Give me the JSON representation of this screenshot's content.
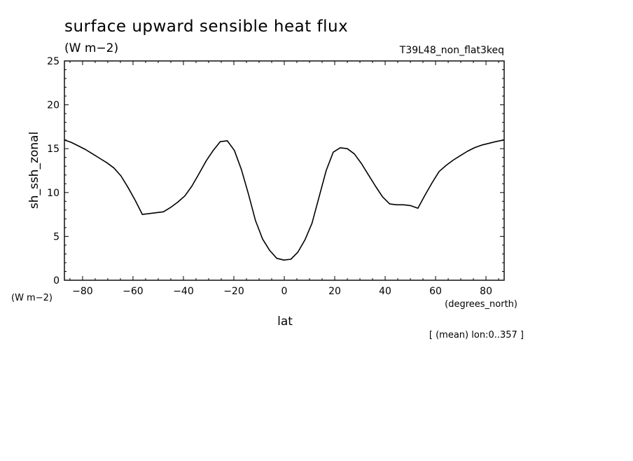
{
  "chart_data": {
    "type": "line",
    "title": "surface upward sensible heat flux",
    "units": "(W m−2)",
    "experiment": "T39L48_non_flat3keq",
    "ylabel": "sh_ssh_zonal",
    "yunits": "(W m−2)",
    "xlabel": "lat",
    "xunits": "(degrees_north)",
    "note": "[ (mean) lon:0..357 ]",
    "xlim": [
      -87.2,
      87.2
    ],
    "ylim": [
      0,
      25
    ],
    "x_ticks": [
      -80,
      -60,
      -40,
      -20,
      0,
      20,
      40,
      60,
      80
    ],
    "x_tick_labels": [
      "−80",
      "−60",
      "−40",
      "−20",
      "0",
      "20",
      "40",
      "60",
      "80"
    ],
    "y_ticks": [
      0,
      5,
      10,
      15,
      20,
      25
    ],
    "y_tick_labels": [
      "0",
      "5",
      "10",
      "15",
      "20",
      "25"
    ],
    "grid": false,
    "series": [
      {
        "x": [
          -87.2,
          -84.4,
          -81.6,
          -78.8,
          -76.0,
          -73.2,
          -70.4,
          -67.6,
          -64.8,
          -62.0,
          -59.1,
          -56.3,
          -53.5,
          -50.7,
          -47.9,
          -45.1,
          -42.3,
          -39.5,
          -36.7,
          -33.9,
          -31.0,
          -28.2,
          -25.4,
          -22.6,
          -19.8,
          -17.0,
          -14.2,
          -11.4,
          -8.6,
          -5.8,
          -3.0,
          -0.2,
          2.6,
          5.4,
          8.2,
          11.0,
          13.8,
          16.6,
          19.4,
          22.2,
          25.0,
          27.8,
          30.6,
          33.4,
          36.2,
          39.0,
          41.8,
          44.6,
          47.4,
          50.2,
          53.0,
          55.8,
          58.6,
          61.4,
          64.2,
          67.0,
          69.8,
          72.6,
          75.4,
          78.2,
          81.0,
          83.8,
          87.2
        ],
        "y": [
          16.0,
          15.7,
          15.3,
          14.9,
          14.4,
          13.9,
          13.4,
          12.8,
          11.9,
          10.6,
          9.1,
          7.5,
          7.6,
          7.7,
          7.8,
          8.3,
          8.9,
          9.6,
          10.7,
          12.1,
          13.6,
          14.8,
          15.8,
          15.9,
          14.8,
          12.6,
          9.8,
          6.8,
          4.7,
          3.4,
          2.5,
          2.3,
          2.4,
          3.2,
          4.6,
          6.5,
          9.5,
          12.5,
          14.6,
          15.1,
          15.0,
          14.4,
          13.3,
          12.0,
          10.7,
          9.5,
          8.7,
          8.6,
          8.6,
          8.5,
          8.2,
          9.7,
          11.1,
          12.4,
          13.1,
          13.7,
          14.2,
          14.7,
          15.1,
          15.4,
          15.6,
          15.8,
          16.0
        ]
      }
    ]
  }
}
